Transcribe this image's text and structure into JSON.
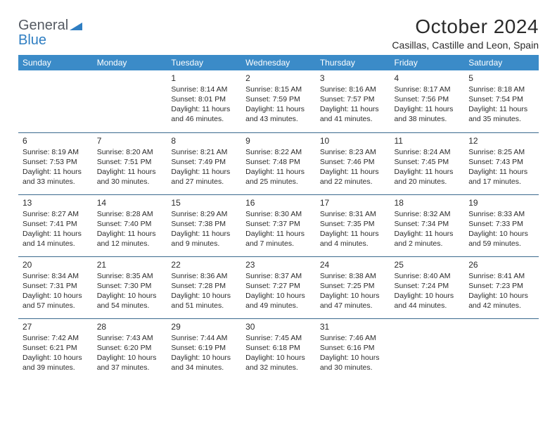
{
  "brand": {
    "word1": "General",
    "word2": "Blue"
  },
  "title": "October 2024",
  "subtitle": "Casillas, Castille and Leon, Spain",
  "colors": {
    "header_bg": "#3b8bc8",
    "header_text": "#ffffff",
    "border": "#3b6a8e",
    "brand_gray": "#555a62",
    "brand_blue": "#2f7ec2"
  },
  "weekdays": [
    "Sunday",
    "Monday",
    "Tuesday",
    "Wednesday",
    "Thursday",
    "Friday",
    "Saturday"
  ],
  "weeks": [
    [
      null,
      null,
      {
        "n": "1",
        "sr": "Sunrise: 8:14 AM",
        "ss": "Sunset: 8:01 PM",
        "dl": "Daylight: 11 hours and 46 minutes."
      },
      {
        "n": "2",
        "sr": "Sunrise: 8:15 AM",
        "ss": "Sunset: 7:59 PM",
        "dl": "Daylight: 11 hours and 43 minutes."
      },
      {
        "n": "3",
        "sr": "Sunrise: 8:16 AM",
        "ss": "Sunset: 7:57 PM",
        "dl": "Daylight: 11 hours and 41 minutes."
      },
      {
        "n": "4",
        "sr": "Sunrise: 8:17 AM",
        "ss": "Sunset: 7:56 PM",
        "dl": "Daylight: 11 hours and 38 minutes."
      },
      {
        "n": "5",
        "sr": "Sunrise: 8:18 AM",
        "ss": "Sunset: 7:54 PM",
        "dl": "Daylight: 11 hours and 35 minutes."
      }
    ],
    [
      {
        "n": "6",
        "sr": "Sunrise: 8:19 AM",
        "ss": "Sunset: 7:53 PM",
        "dl": "Daylight: 11 hours and 33 minutes."
      },
      {
        "n": "7",
        "sr": "Sunrise: 8:20 AM",
        "ss": "Sunset: 7:51 PM",
        "dl": "Daylight: 11 hours and 30 minutes."
      },
      {
        "n": "8",
        "sr": "Sunrise: 8:21 AM",
        "ss": "Sunset: 7:49 PM",
        "dl": "Daylight: 11 hours and 27 minutes."
      },
      {
        "n": "9",
        "sr": "Sunrise: 8:22 AM",
        "ss": "Sunset: 7:48 PM",
        "dl": "Daylight: 11 hours and 25 minutes."
      },
      {
        "n": "10",
        "sr": "Sunrise: 8:23 AM",
        "ss": "Sunset: 7:46 PM",
        "dl": "Daylight: 11 hours and 22 minutes."
      },
      {
        "n": "11",
        "sr": "Sunrise: 8:24 AM",
        "ss": "Sunset: 7:45 PM",
        "dl": "Daylight: 11 hours and 20 minutes."
      },
      {
        "n": "12",
        "sr": "Sunrise: 8:25 AM",
        "ss": "Sunset: 7:43 PM",
        "dl": "Daylight: 11 hours and 17 minutes."
      }
    ],
    [
      {
        "n": "13",
        "sr": "Sunrise: 8:27 AM",
        "ss": "Sunset: 7:41 PM",
        "dl": "Daylight: 11 hours and 14 minutes."
      },
      {
        "n": "14",
        "sr": "Sunrise: 8:28 AM",
        "ss": "Sunset: 7:40 PM",
        "dl": "Daylight: 11 hours and 12 minutes."
      },
      {
        "n": "15",
        "sr": "Sunrise: 8:29 AM",
        "ss": "Sunset: 7:38 PM",
        "dl": "Daylight: 11 hours and 9 minutes."
      },
      {
        "n": "16",
        "sr": "Sunrise: 8:30 AM",
        "ss": "Sunset: 7:37 PM",
        "dl": "Daylight: 11 hours and 7 minutes."
      },
      {
        "n": "17",
        "sr": "Sunrise: 8:31 AM",
        "ss": "Sunset: 7:35 PM",
        "dl": "Daylight: 11 hours and 4 minutes."
      },
      {
        "n": "18",
        "sr": "Sunrise: 8:32 AM",
        "ss": "Sunset: 7:34 PM",
        "dl": "Daylight: 11 hours and 2 minutes."
      },
      {
        "n": "19",
        "sr": "Sunrise: 8:33 AM",
        "ss": "Sunset: 7:33 PM",
        "dl": "Daylight: 10 hours and 59 minutes."
      }
    ],
    [
      {
        "n": "20",
        "sr": "Sunrise: 8:34 AM",
        "ss": "Sunset: 7:31 PM",
        "dl": "Daylight: 10 hours and 57 minutes."
      },
      {
        "n": "21",
        "sr": "Sunrise: 8:35 AM",
        "ss": "Sunset: 7:30 PM",
        "dl": "Daylight: 10 hours and 54 minutes."
      },
      {
        "n": "22",
        "sr": "Sunrise: 8:36 AM",
        "ss": "Sunset: 7:28 PM",
        "dl": "Daylight: 10 hours and 51 minutes."
      },
      {
        "n": "23",
        "sr": "Sunrise: 8:37 AM",
        "ss": "Sunset: 7:27 PM",
        "dl": "Daylight: 10 hours and 49 minutes."
      },
      {
        "n": "24",
        "sr": "Sunrise: 8:38 AM",
        "ss": "Sunset: 7:25 PM",
        "dl": "Daylight: 10 hours and 47 minutes."
      },
      {
        "n": "25",
        "sr": "Sunrise: 8:40 AM",
        "ss": "Sunset: 7:24 PM",
        "dl": "Daylight: 10 hours and 44 minutes."
      },
      {
        "n": "26",
        "sr": "Sunrise: 8:41 AM",
        "ss": "Sunset: 7:23 PM",
        "dl": "Daylight: 10 hours and 42 minutes."
      }
    ],
    [
      {
        "n": "27",
        "sr": "Sunrise: 7:42 AM",
        "ss": "Sunset: 6:21 PM",
        "dl": "Daylight: 10 hours and 39 minutes."
      },
      {
        "n": "28",
        "sr": "Sunrise: 7:43 AM",
        "ss": "Sunset: 6:20 PM",
        "dl": "Daylight: 10 hours and 37 minutes."
      },
      {
        "n": "29",
        "sr": "Sunrise: 7:44 AM",
        "ss": "Sunset: 6:19 PM",
        "dl": "Daylight: 10 hours and 34 minutes."
      },
      {
        "n": "30",
        "sr": "Sunrise: 7:45 AM",
        "ss": "Sunset: 6:18 PM",
        "dl": "Daylight: 10 hours and 32 minutes."
      },
      {
        "n": "31",
        "sr": "Sunrise: 7:46 AM",
        "ss": "Sunset: 6:16 PM",
        "dl": "Daylight: 10 hours and 30 minutes."
      },
      null,
      null
    ]
  ]
}
